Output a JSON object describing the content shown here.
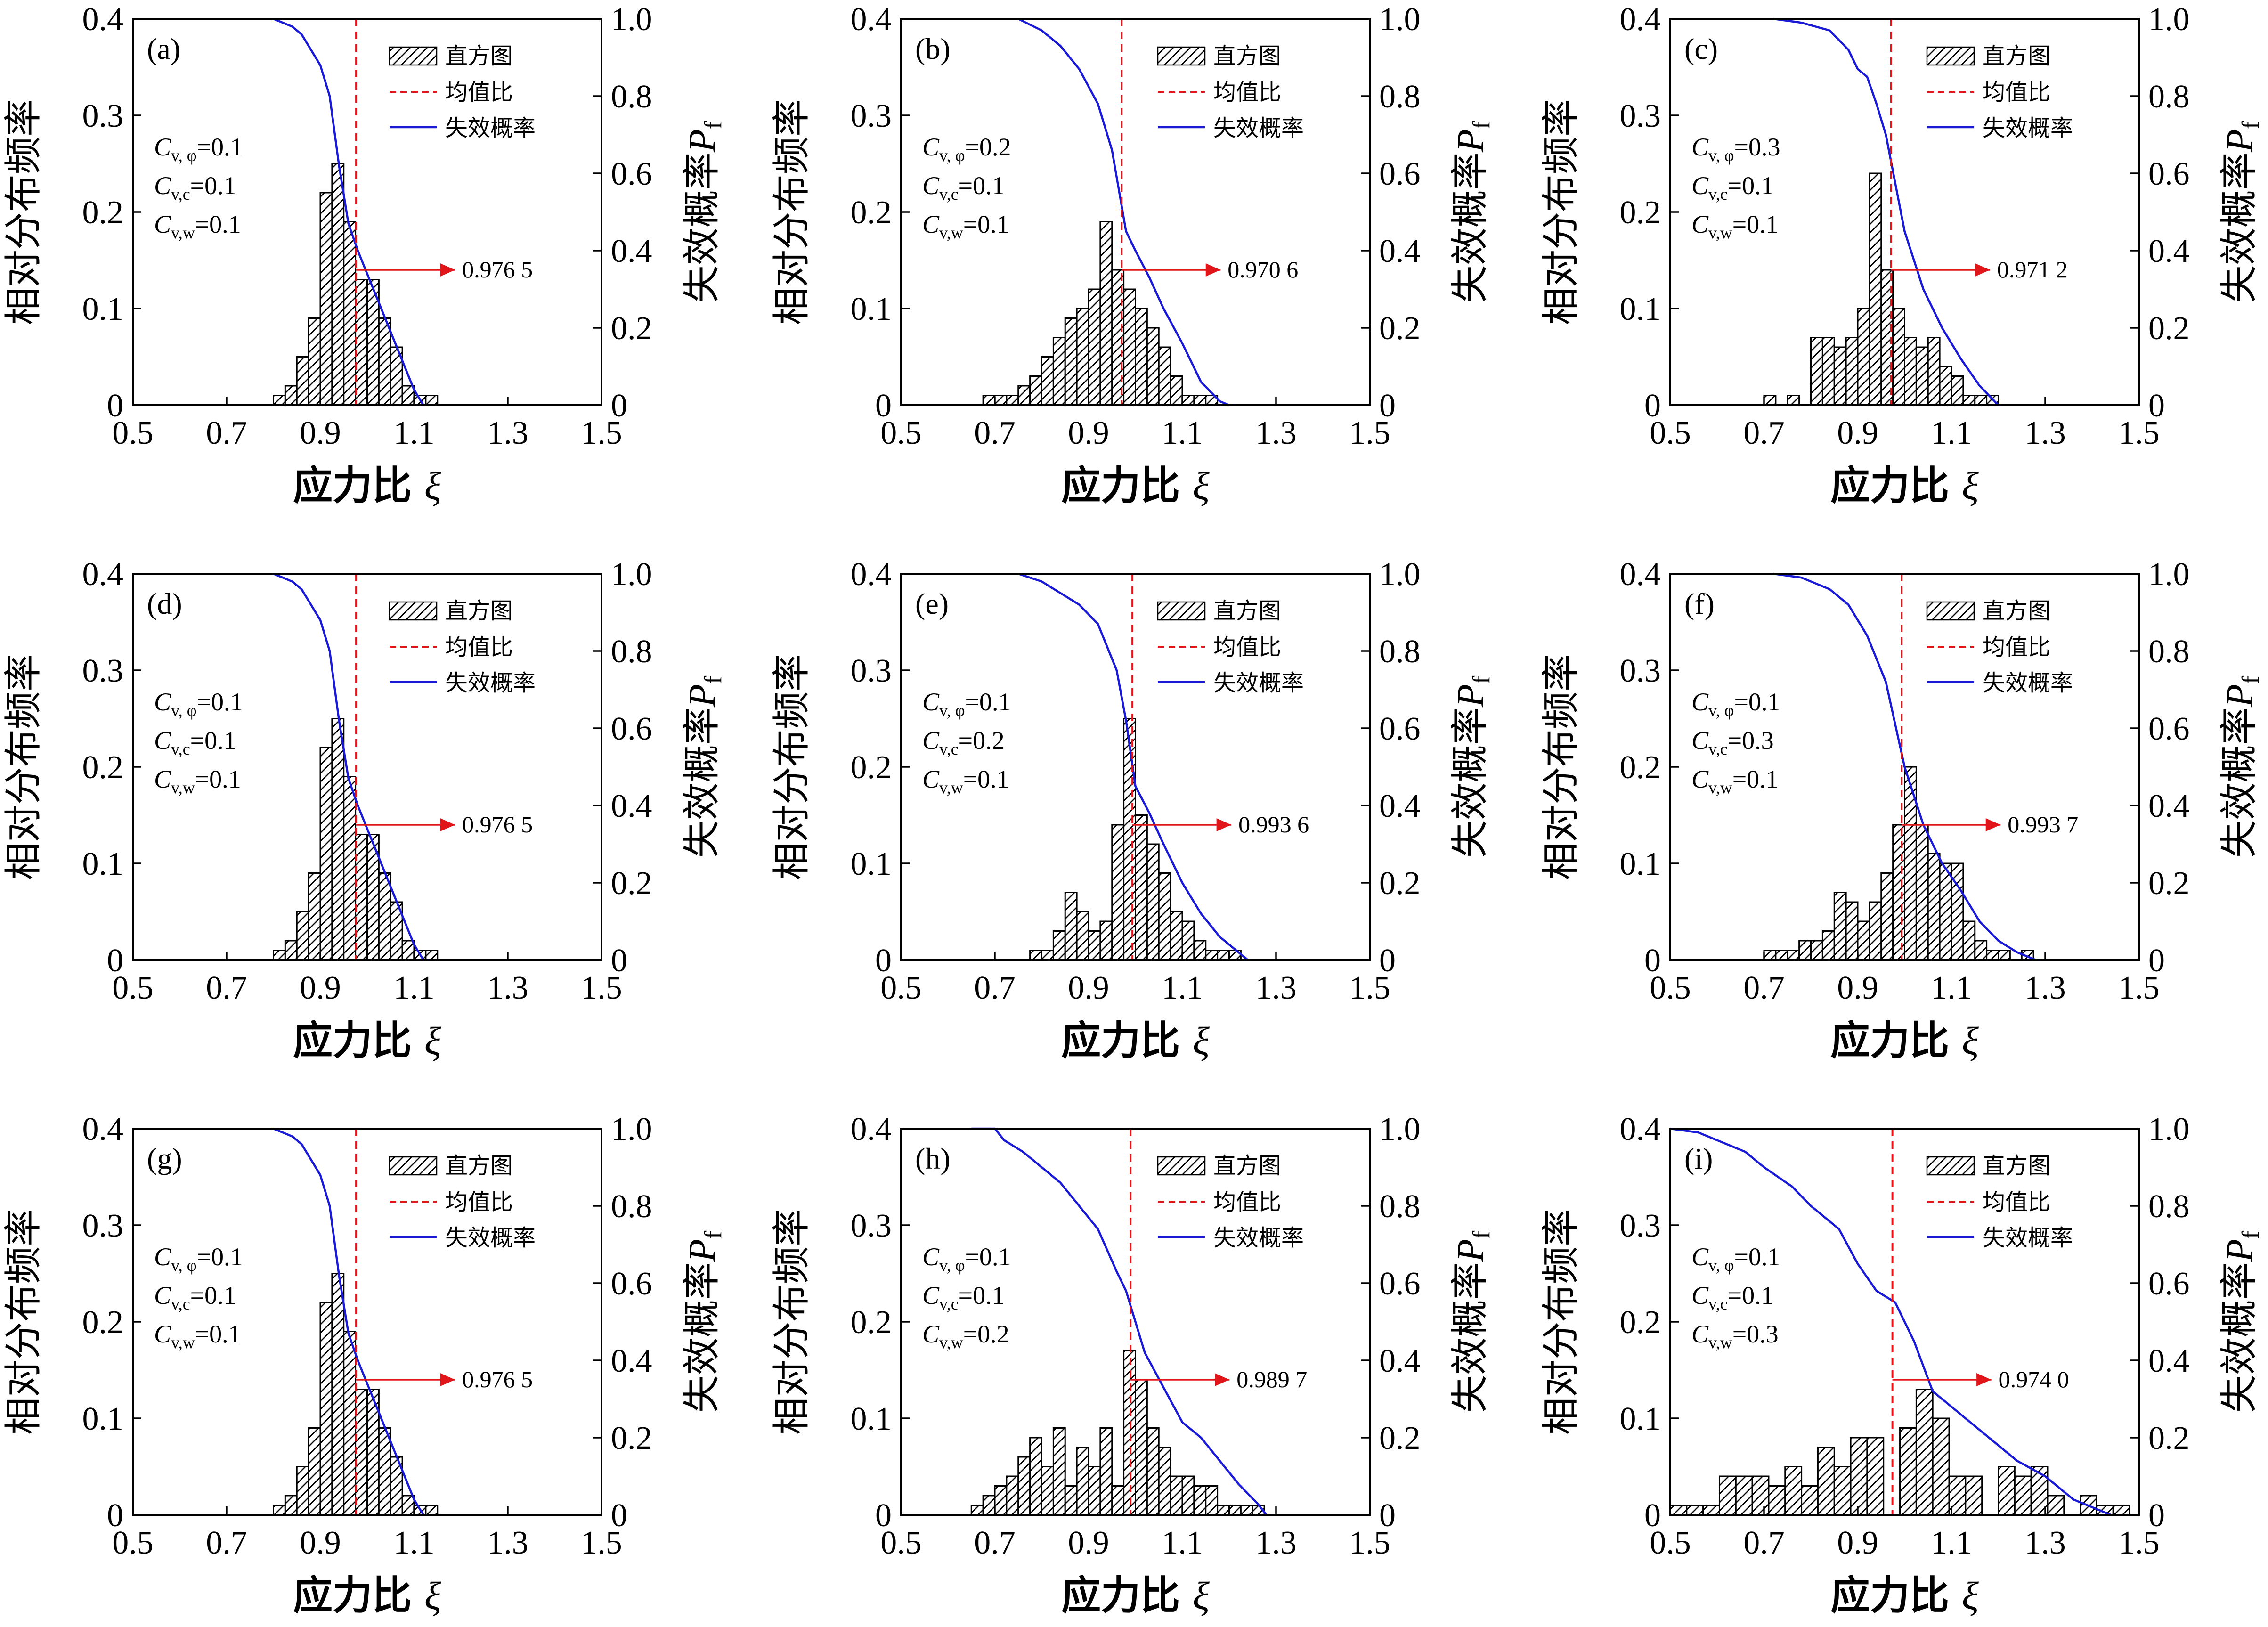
{
  "colors": {
    "curve": "#1a1ad4",
    "mean_line": "#e0161b",
    "arrow": "#e0161b",
    "bars": "#000000"
  },
  "chart_data": [
    {
      "type": "bar",
      "panel_label": "(a)",
      "xlabel_text": "应力比",
      "xlabel_symbol": "ξ",
      "ylabel": "相对分布频率",
      "y2label_text": "失效概率",
      "y2label_symbol": "P",
      "y2label_sub": "f",
      "xlim": [
        0.5,
        1.5
      ],
      "ylim": [
        0,
        0.4
      ],
      "y2lim": [
        0,
        1.0
      ],
      "xticks": [
        "0.5",
        "0.7",
        "0.9",
        "1.1",
        "1.3",
        "1.5"
      ],
      "yticks": [
        "0",
        "0.1",
        "0.2",
        "0.3",
        "0.4"
      ],
      "y2ticks": [
        "0",
        "0.2",
        "0.4",
        "0.6",
        "0.8",
        "1.0"
      ],
      "legend": [
        "直方图",
        "均值比",
        "失效概率"
      ],
      "cv_labels": [
        {
          "sym": "C",
          "sub": "v, φ",
          "val": "=0.1"
        },
        {
          "sym": "C",
          "sub": "v,c",
          "val": "=0.1"
        },
        {
          "sym": "C",
          "sub": "v,w",
          "val": "=0.1"
        }
      ],
      "mean": 0.9765,
      "annotation": "0.976 5",
      "bin_start": 0.8,
      "bin_width": 0.025,
      "hist": [
        0.01,
        0.02,
        0.05,
        0.09,
        0.22,
        0.25,
        0.19,
        0.13,
        0.13,
        0.09,
        0.06,
        0.02,
        0.01,
        0.01
      ],
      "pf_x": [
        0.8,
        0.84,
        0.86,
        0.88,
        0.9,
        0.92,
        0.94,
        0.96,
        0.98,
        1.0,
        1.02,
        1.04,
        1.06,
        1.08,
        1.1,
        1.12
      ],
      "pf_y": [
        1.0,
        0.98,
        0.96,
        0.92,
        0.88,
        0.8,
        0.62,
        0.47,
        0.4,
        0.34,
        0.28,
        0.22,
        0.16,
        0.1,
        0.04,
        0.0
      ]
    },
    {
      "type": "bar",
      "panel_label": "(b)",
      "xlabel_text": "应力比",
      "xlabel_symbol": "ξ",
      "ylabel": "相对分布频率",
      "y2label_text": "失效概率",
      "y2label_symbol": "P",
      "y2label_sub": "f",
      "xlim": [
        0.5,
        1.5
      ],
      "ylim": [
        0,
        0.4
      ],
      "y2lim": [
        0,
        1.0
      ],
      "xticks": [
        "0.5",
        "0.7",
        "0.9",
        "1.1",
        "1.3",
        "1.5"
      ],
      "yticks": [
        "0",
        "0.1",
        "0.2",
        "0.3",
        "0.4"
      ],
      "y2ticks": [
        "0",
        "0.2",
        "0.4",
        "0.6",
        "0.8",
        "1.0"
      ],
      "legend": [
        "直方图",
        "均值比",
        "失效概率"
      ],
      "cv_labels": [
        {
          "sym": "C",
          "sub": "v, φ",
          "val": "=0.2"
        },
        {
          "sym": "C",
          "sub": "v,c",
          "val": "=0.1"
        },
        {
          "sym": "C",
          "sub": "v,w",
          "val": "=0.1"
        }
      ],
      "mean": 0.9706,
      "annotation": "0.970 6",
      "bin_start": 0.675,
      "bin_width": 0.025,
      "hist": [
        0.01,
        0.01,
        0.01,
        0.02,
        0.03,
        0.05,
        0.07,
        0.09,
        0.1,
        0.12,
        0.19,
        0.14,
        0.12,
        0.1,
        0.08,
        0.06,
        0.03,
        0.01,
        0.01,
        0.01
      ],
      "pf_x": [
        0.75,
        0.8,
        0.84,
        0.88,
        0.92,
        0.95,
        0.98,
        1.0,
        1.03,
        1.06,
        1.1,
        1.14,
        1.18,
        1.2
      ],
      "pf_y": [
        1.0,
        0.97,
        0.93,
        0.87,
        0.78,
        0.66,
        0.45,
        0.4,
        0.33,
        0.25,
        0.16,
        0.06,
        0.01,
        0.0
      ]
    },
    {
      "type": "bar",
      "panel_label": "(c)",
      "xlabel_text": "应力比",
      "xlabel_symbol": "ξ",
      "ylabel": "相对分布频率",
      "y2label_text": "失效概率",
      "y2label_symbol": "P",
      "y2label_sub": "f",
      "xlim": [
        0.5,
        1.5
      ],
      "ylim": [
        0,
        0.4
      ],
      "y2lim": [
        0,
        1.0
      ],
      "xticks": [
        "0.5",
        "0.7",
        "0.9",
        "1.1",
        "1.3",
        "1.5"
      ],
      "yticks": [
        "0",
        "0.1",
        "0.2",
        "0.3",
        "0.4"
      ],
      "y2ticks": [
        "0",
        "0.2",
        "0.4",
        "0.6",
        "0.8",
        "1.0"
      ],
      "legend": [
        "直方图",
        "均值比",
        "失效概率"
      ],
      "cv_labels": [
        {
          "sym": "C",
          "sub": "v, φ",
          "val": "=0.3"
        },
        {
          "sym": "C",
          "sub": "v,c",
          "val": "=0.1"
        },
        {
          "sym": "C",
          "sub": "v,w",
          "val": "=0.1"
        }
      ],
      "mean": 0.9712,
      "annotation": "0.971 2",
      "bin_start": 0.7,
      "bin_width": 0.025,
      "hist": [
        0.01,
        0.0,
        0.01,
        0.0,
        0.07,
        0.07,
        0.06,
        0.07,
        0.1,
        0.24,
        0.14,
        0.1,
        0.07,
        0.06,
        0.07,
        0.04,
        0.03,
        0.01,
        0.01,
        0.01
      ],
      "pf_x": [
        0.72,
        0.78,
        0.84,
        0.88,
        0.9,
        0.92,
        0.94,
        0.96,
        1.0,
        1.04,
        1.08,
        1.12,
        1.16,
        1.2
      ],
      "pf_y": [
        1.0,
        0.99,
        0.97,
        0.92,
        0.87,
        0.85,
        0.78,
        0.7,
        0.45,
        0.3,
        0.2,
        0.12,
        0.05,
        0.0
      ]
    },
    {
      "type": "bar",
      "panel_label": "(d)",
      "xlabel_text": "应力比",
      "xlabel_symbol": "ξ",
      "ylabel": "相对分布频率",
      "y2label_text": "失效概率",
      "y2label_symbol": "P",
      "y2label_sub": "f",
      "xlim": [
        0.5,
        1.5
      ],
      "ylim": [
        0,
        0.4
      ],
      "y2lim": [
        0,
        1.0
      ],
      "xticks": [
        "0.5",
        "0.7",
        "0.9",
        "1.1",
        "1.3",
        "1.5"
      ],
      "yticks": [
        "0",
        "0.1",
        "0.2",
        "0.3",
        "0.4"
      ],
      "y2ticks": [
        "0",
        "0.2",
        "0.4",
        "0.6",
        "0.8",
        "1.0"
      ],
      "legend": [
        "直方图",
        "均值比",
        "失效概率"
      ],
      "cv_labels": [
        {
          "sym": "C",
          "sub": "v, φ",
          "val": "=0.1"
        },
        {
          "sym": "C",
          "sub": "v,c",
          "val": "=0.1"
        },
        {
          "sym": "C",
          "sub": "v,w",
          "val": "=0.1"
        }
      ],
      "mean": 0.9765,
      "annotation": "0.976 5",
      "bin_start": 0.8,
      "bin_width": 0.025,
      "hist": [
        0.01,
        0.02,
        0.05,
        0.09,
        0.22,
        0.25,
        0.19,
        0.13,
        0.13,
        0.09,
        0.06,
        0.02,
        0.01,
        0.01
      ],
      "pf_x": [
        0.8,
        0.84,
        0.86,
        0.88,
        0.9,
        0.92,
        0.94,
        0.96,
        0.98,
        1.0,
        1.02,
        1.04,
        1.06,
        1.08,
        1.1,
        1.12
      ],
      "pf_y": [
        1.0,
        0.98,
        0.96,
        0.92,
        0.88,
        0.8,
        0.62,
        0.47,
        0.4,
        0.34,
        0.28,
        0.22,
        0.16,
        0.1,
        0.04,
        0.0
      ]
    },
    {
      "type": "bar",
      "panel_label": "(e)",
      "xlabel_text": "应力比",
      "xlabel_symbol": "ξ",
      "ylabel": "相对分布频率",
      "y2label_text": "失效概率",
      "y2label_symbol": "P",
      "y2label_sub": "f",
      "xlim": [
        0.5,
        1.5
      ],
      "ylim": [
        0,
        0.4
      ],
      "y2lim": [
        0,
        1.0
      ],
      "xticks": [
        "0.5",
        "0.7",
        "0.9",
        "1.1",
        "1.3",
        "1.5"
      ],
      "yticks": [
        "0",
        "0.1",
        "0.2",
        "0.3",
        "0.4"
      ],
      "y2ticks": [
        "0",
        "0.2",
        "0.4",
        "0.6",
        "0.8",
        "1.0"
      ],
      "legend": [
        "直方图",
        "均值比",
        "失效概率"
      ],
      "cv_labels": [
        {
          "sym": "C",
          "sub": "v, φ",
          "val": "=0.1"
        },
        {
          "sym": "C",
          "sub": "v,c",
          "val": "=0.2"
        },
        {
          "sym": "C",
          "sub": "v,w",
          "val": "=0.1"
        }
      ],
      "mean": 0.9936,
      "annotation": "0.993 6",
      "bin_start": 0.775,
      "bin_width": 0.025,
      "hist": [
        0.01,
        0.01,
        0.03,
        0.07,
        0.05,
        0.03,
        0.04,
        0.14,
        0.25,
        0.15,
        0.12,
        0.09,
        0.05,
        0.04,
        0.02,
        0.01,
        0.01,
        0.01
      ],
      "pf_x": [
        0.75,
        0.8,
        0.84,
        0.88,
        0.92,
        0.96,
        0.98,
        1.0,
        1.03,
        1.06,
        1.1,
        1.14,
        1.18,
        1.22,
        1.24
      ],
      "pf_y": [
        1.0,
        0.98,
        0.95,
        0.92,
        0.87,
        0.75,
        0.62,
        0.45,
        0.38,
        0.3,
        0.2,
        0.12,
        0.06,
        0.02,
        0.0
      ]
    },
    {
      "type": "bar",
      "panel_label": "(f)",
      "xlabel_text": "应力比",
      "xlabel_symbol": "ξ",
      "ylabel": "相对分布频率",
      "y2label_text": "失效概率",
      "y2label_symbol": "P",
      "y2label_sub": "f",
      "xlim": [
        0.5,
        1.5
      ],
      "ylim": [
        0,
        0.4
      ],
      "y2lim": [
        0,
        1.0
      ],
      "xticks": [
        "0.5",
        "0.7",
        "0.9",
        "1.1",
        "1.3",
        "1.5"
      ],
      "yticks": [
        "0",
        "0.1",
        "0.2",
        "0.3",
        "0.4"
      ],
      "y2ticks": [
        "0",
        "0.2",
        "0.4",
        "0.6",
        "0.8",
        "1.0"
      ],
      "legend": [
        "直方图",
        "均值比",
        "失效概率"
      ],
      "cv_labels": [
        {
          "sym": "C",
          "sub": "v, φ",
          "val": "=0.1"
        },
        {
          "sym": "C",
          "sub": "v,c",
          "val": "=0.3"
        },
        {
          "sym": "C",
          "sub": "v,w",
          "val": "=0.1"
        }
      ],
      "mean": 0.9937,
      "annotation": "0.993 7",
      "bin_start": 0.7,
      "bin_width": 0.025,
      "hist": [
        0.01,
        0.01,
        0.01,
        0.02,
        0.02,
        0.03,
        0.07,
        0.06,
        0.04,
        0.06,
        0.09,
        0.14,
        0.2,
        0.14,
        0.11,
        0.1,
        0.1,
        0.04,
        0.02,
        0.01,
        0.01,
        0.0,
        0.01
      ],
      "pf_x": [
        0.72,
        0.78,
        0.84,
        0.88,
        0.92,
        0.96,
        1.0,
        1.04,
        1.08,
        1.12,
        1.16,
        1.2,
        1.24,
        1.28
      ],
      "pf_y": [
        1.0,
        0.99,
        0.96,
        0.92,
        0.84,
        0.72,
        0.5,
        0.35,
        0.25,
        0.18,
        0.1,
        0.05,
        0.02,
        0.0
      ]
    },
    {
      "type": "bar",
      "panel_label": "(g)",
      "xlabel_text": "应力比",
      "xlabel_symbol": "ξ",
      "ylabel": "相对分布频率",
      "y2label_text": "失效概率",
      "y2label_symbol": "P",
      "y2label_sub": "f",
      "xlim": [
        0.5,
        1.5
      ],
      "ylim": [
        0,
        0.4
      ],
      "y2lim": [
        0,
        1.0
      ],
      "xticks": [
        "0.5",
        "0.7",
        "0.9",
        "1.1",
        "1.3",
        "1.5"
      ],
      "yticks": [
        "0",
        "0.1",
        "0.2",
        "0.3",
        "0.4"
      ],
      "y2ticks": [
        "0",
        "0.2",
        "0.4",
        "0.6",
        "0.8",
        "1.0"
      ],
      "legend": [
        "直方图",
        "均值比",
        "失效概率"
      ],
      "cv_labels": [
        {
          "sym": "C",
          "sub": "v, φ",
          "val": "=0.1"
        },
        {
          "sym": "C",
          "sub": "v,c",
          "val": "=0.1"
        },
        {
          "sym": "C",
          "sub": "v,w",
          "val": "=0.1"
        }
      ],
      "mean": 0.9765,
      "annotation": "0.976 5",
      "bin_start": 0.8,
      "bin_width": 0.025,
      "hist": [
        0.01,
        0.02,
        0.05,
        0.09,
        0.22,
        0.25,
        0.19,
        0.13,
        0.13,
        0.09,
        0.06,
        0.02,
        0.01,
        0.01
      ],
      "pf_x": [
        0.8,
        0.84,
        0.86,
        0.88,
        0.9,
        0.92,
        0.94,
        0.96,
        0.98,
        1.0,
        1.02,
        1.04,
        1.06,
        1.08,
        1.1,
        1.12
      ],
      "pf_y": [
        1.0,
        0.98,
        0.96,
        0.92,
        0.88,
        0.8,
        0.62,
        0.47,
        0.4,
        0.34,
        0.28,
        0.22,
        0.16,
        0.1,
        0.04,
        0.0
      ]
    },
    {
      "type": "bar",
      "panel_label": "(h)",
      "xlabel_text": "应力比",
      "xlabel_symbol": "ξ",
      "ylabel": "相对分布频率",
      "y2label_text": "失效概率",
      "y2label_symbol": "P",
      "y2label_sub": "f",
      "xlim": [
        0.5,
        1.5
      ],
      "ylim": [
        0,
        0.4
      ],
      "y2lim": [
        0,
        1.0
      ],
      "xticks": [
        "0.5",
        "0.7",
        "0.9",
        "1.1",
        "1.3",
        "1.5"
      ],
      "yticks": [
        "0",
        "0.1",
        "0.2",
        "0.3",
        "0.4"
      ],
      "y2ticks": [
        "0",
        "0.2",
        "0.4",
        "0.6",
        "0.8",
        "1.0"
      ],
      "legend": [
        "直方图",
        "均值比",
        "失效概率"
      ],
      "cv_labels": [
        {
          "sym": "C",
          "sub": "v, φ",
          "val": "=0.1"
        },
        {
          "sym": "C",
          "sub": "v,c",
          "val": "=0.1"
        },
        {
          "sym": "C",
          "sub": "v,w",
          "val": "=0.2"
        }
      ],
      "mean": 0.9897,
      "annotation": "0.989 7",
      "bin_start": 0.65,
      "bin_width": 0.025,
      "hist": [
        0.01,
        0.02,
        0.03,
        0.04,
        0.06,
        0.08,
        0.05,
        0.09,
        0.03,
        0.07,
        0.05,
        0.09,
        0.03,
        0.17,
        0.14,
        0.09,
        0.07,
        0.04,
        0.04,
        0.03,
        0.03,
        0.01,
        0.01,
        0.01,
        0.01
      ],
      "pf_x": [
        0.65,
        0.7,
        0.72,
        0.76,
        0.8,
        0.84,
        0.88,
        0.92,
        0.96,
        0.98,
        1.02,
        1.06,
        1.1,
        1.14,
        1.18,
        1.22,
        1.26,
        1.28
      ],
      "pf_y": [
        1.0,
        1.0,
        0.97,
        0.94,
        0.9,
        0.86,
        0.8,
        0.74,
        0.63,
        0.58,
        0.42,
        0.33,
        0.24,
        0.2,
        0.14,
        0.08,
        0.03,
        0.0
      ]
    },
    {
      "type": "bar",
      "panel_label": "(i)",
      "xlabel_text": "应力比",
      "xlabel_symbol": "ξ",
      "ylabel": "相对分布频率",
      "y2label_text": "失效概率",
      "y2label_symbol": "P",
      "y2label_sub": "f",
      "xlim": [
        0.5,
        1.5
      ],
      "ylim": [
        0,
        0.4
      ],
      "y2lim": [
        0,
        1.0
      ],
      "xticks": [
        "0.5",
        "0.7",
        "0.9",
        "1.1",
        "1.3",
        "1.5"
      ],
      "yticks": [
        "0",
        "0.1",
        "0.2",
        "0.3",
        "0.4"
      ],
      "y2ticks": [
        "0",
        "0.2",
        "0.4",
        "0.6",
        "0.8",
        "1.0"
      ],
      "legend": [
        "直方图",
        "均值比",
        "失效概率"
      ],
      "cv_labels": [
        {
          "sym": "C",
          "sub": "v, φ",
          "val": "=0.1"
        },
        {
          "sym": "C",
          "sub": "v,c",
          "val": "=0.1"
        },
        {
          "sym": "C",
          "sub": "v,w",
          "val": "=0.3"
        }
      ],
      "mean": 0.974,
      "annotation": "0.974 0",
      "bin_start": 0.5,
      "bin_width": 0.035,
      "hist": [
        0.01,
        0.01,
        0.01,
        0.04,
        0.04,
        0.04,
        0.03,
        0.05,
        0.03,
        0.07,
        0.05,
        0.08,
        0.08,
        0.0,
        0.09,
        0.13,
        0.1,
        0.04,
        0.04,
        0.0,
        0.05,
        0.04,
        0.05,
        0.02,
        0.0,
        0.02,
        0.01,
        0.01
      ],
      "pf_x": [
        0.5,
        0.56,
        0.6,
        0.66,
        0.7,
        0.76,
        0.8,
        0.86,
        0.9,
        0.94,
        0.98,
        1.02,
        1.06,
        1.12,
        1.18,
        1.24,
        1.3,
        1.36,
        1.4,
        1.44
      ],
      "pf_y": [
        1.0,
        0.99,
        0.97,
        0.94,
        0.9,
        0.85,
        0.8,
        0.74,
        0.65,
        0.58,
        0.55,
        0.45,
        0.32,
        0.26,
        0.2,
        0.14,
        0.1,
        0.04,
        0.02,
        0.0
      ]
    }
  ]
}
